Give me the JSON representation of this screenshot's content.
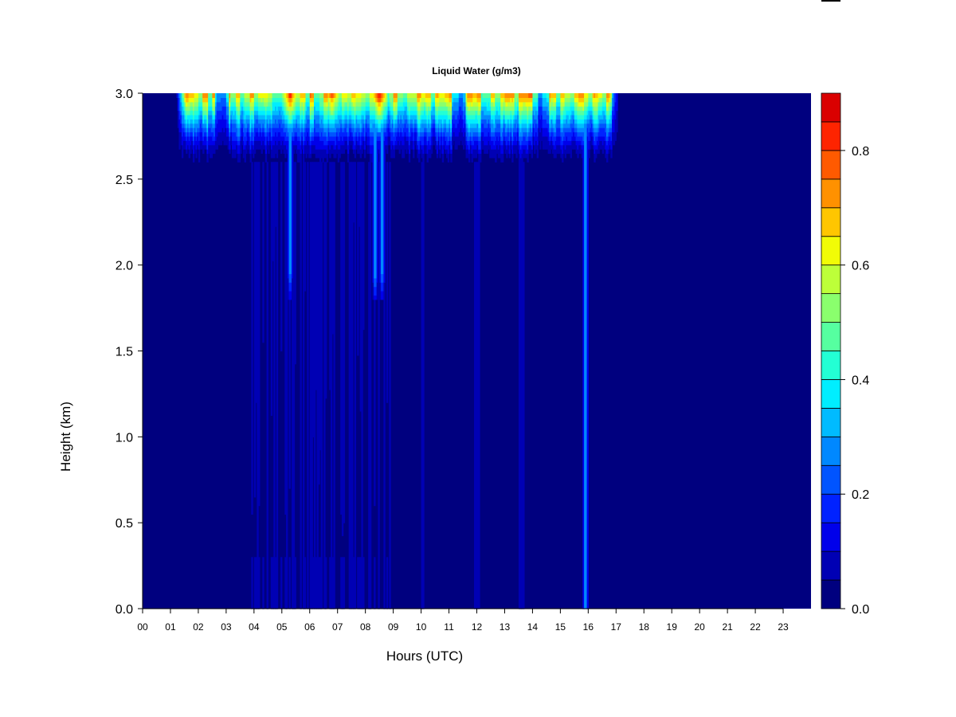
{
  "chart_data": {
    "type": "heatmap",
    "title": "Liquid Water (g/m3)",
    "xlabel": "Hours (UTC)",
    "ylabel": "Height (km)",
    "xlim": [
      0,
      24
    ],
    "ylim": [
      0.0,
      3.0
    ],
    "x_ticks": [
      "00",
      "01",
      "02",
      "03",
      "04",
      "05",
      "06",
      "07",
      "08",
      "09",
      "10",
      "11",
      "12",
      "13",
      "14",
      "15",
      "16",
      "17",
      "18",
      "19",
      "20",
      "21",
      "22",
      "23"
    ],
    "y_ticks": [
      "0.0",
      "0.5",
      "1.0",
      "1.5",
      "2.0",
      "2.5",
      "3.0"
    ],
    "colorbar": {
      "min": 0.0,
      "max": 0.9,
      "levels": [
        0.0,
        0.05,
        0.1,
        0.15,
        0.2,
        0.25,
        0.3,
        0.35,
        0.4,
        0.45,
        0.5,
        0.55,
        0.6,
        0.65,
        0.7,
        0.75,
        0.8,
        0.85,
        0.9
      ],
      "colors": [
        "#00007f",
        "#0000b4",
        "#0000ea",
        "#0022ff",
        "#0054ff",
        "#0088ff",
        "#00bbff",
        "#00eeff",
        "#23ffd4",
        "#56ffa0",
        "#8aff6d",
        "#bdff39",
        "#f1fc06",
        "#ffc600",
        "#ff9100",
        "#ff5a00",
        "#fe2400",
        "#da0000",
        "#a40000"
      ],
      "tick_labels": [
        "0.0",
        "0.2",
        "0.4",
        "0.6",
        "0.8"
      ],
      "tick_values": [
        0.0,
        0.2,
        0.4,
        0.6,
        0.8
      ]
    },
    "cloud_top_km": 3.0,
    "cloud_base_km": 2.55,
    "cloud_events": [
      {
        "start_hour": 1.2,
        "end_hour": 17.1,
        "peak": 0.68,
        "base_km": 2.55
      },
      {
        "start_hour": 5.0,
        "end_hour": 5.6,
        "peak": 0.82,
        "base_km": 2.6
      },
      {
        "start_hour": 6.5,
        "end_hour": 7.1,
        "peak": 0.78,
        "base_km": 2.6
      },
      {
        "start_hour": 8.2,
        "end_hour": 8.8,
        "peak": 0.86,
        "base_km": 2.6
      }
    ],
    "precipitation_shafts": [
      {
        "hour": 5.3,
        "to_km": 1.8,
        "intensity": 0.32
      },
      {
        "hour": 8.35,
        "to_km": 1.8,
        "intensity": 0.35
      },
      {
        "hour": 8.6,
        "to_km": 1.8,
        "intensity": 0.33
      },
      {
        "hour": 15.9,
        "to_km": 0.0,
        "intensity": 0.3
      }
    ]
  }
}
